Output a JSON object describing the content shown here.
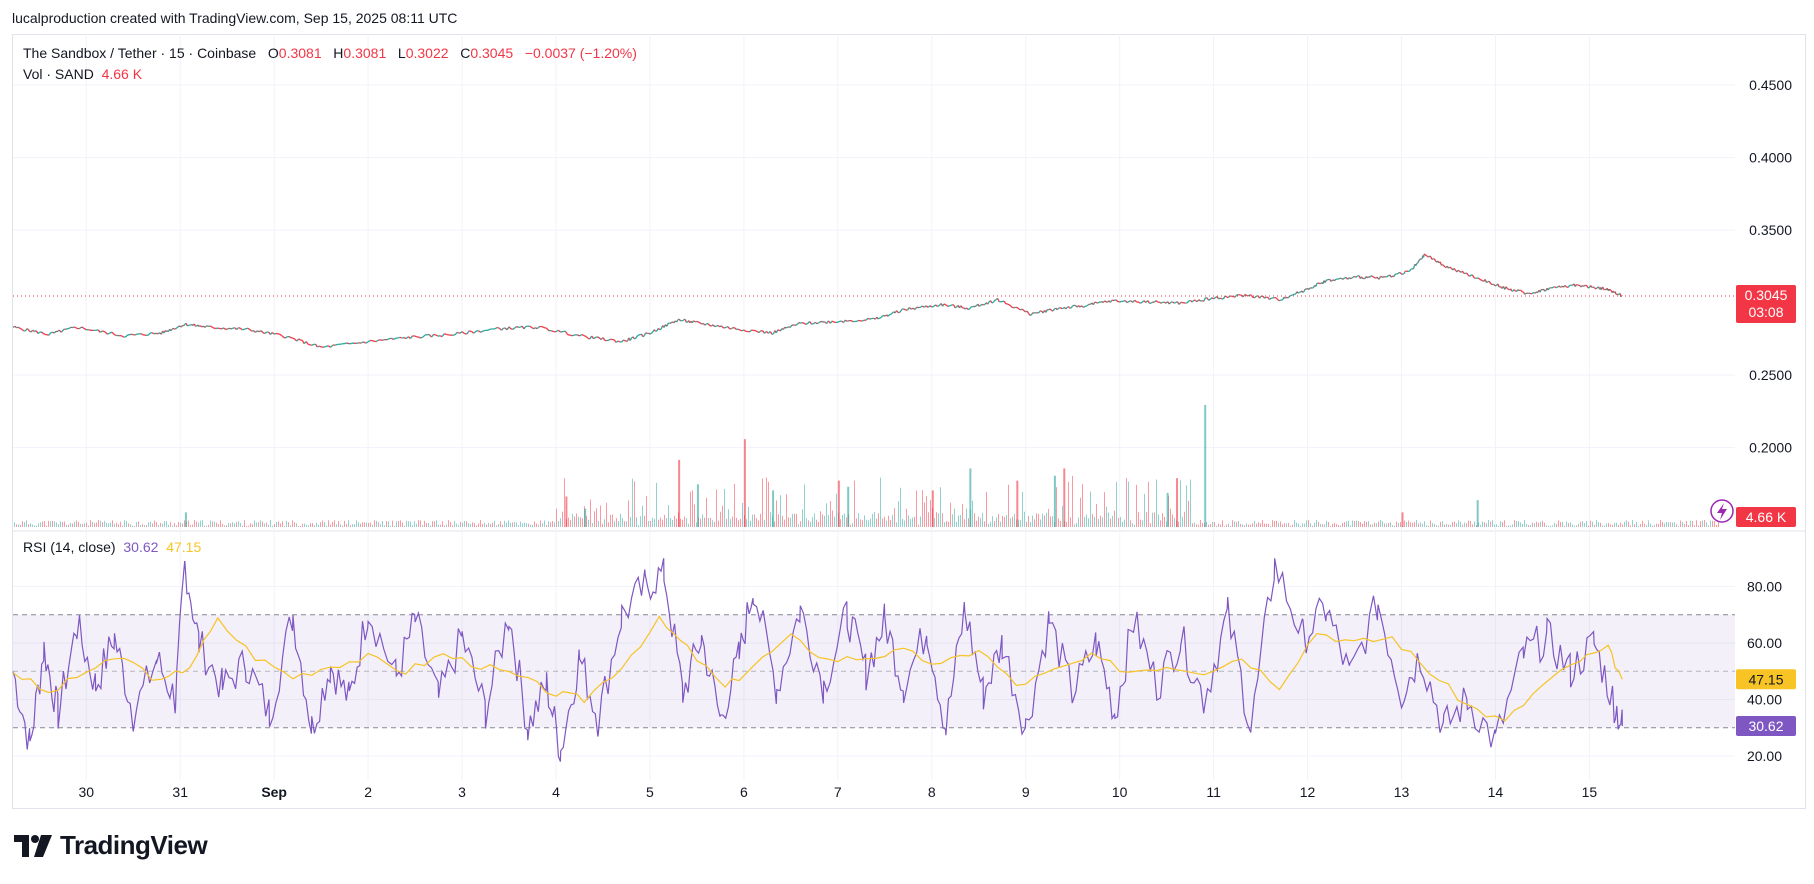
{
  "header": {
    "attribution": "lucalproduction created with TradingView.com, Sep 15, 2025 08:11 UTC"
  },
  "legend": {
    "symbol": "The Sandbox / Tether · 15 · Coinbase",
    "o_label": "O",
    "o_value": "0.3081",
    "h_label": "H",
    "h_value": "0.3081",
    "l_label": "L",
    "l_value": "0.3022",
    "c_label": "C",
    "c_value": "0.3045",
    "change": "−0.0037 (−1.20%)",
    "vol_label": "Vol · SAND",
    "vol_value": "4.66 K",
    "rsi_label": "RSI (14, close)",
    "rsi_value": "30.62",
    "rsi_ma_value": "47.15"
  },
  "badges": {
    "price": "0.3045",
    "countdown": "03:08",
    "volume": "4.66 K",
    "rsi_ma": "47.15",
    "rsi": "30.62"
  },
  "colors": {
    "up": "#26a69a",
    "down": "#f23645",
    "rsi_line": "#7e57c2",
    "rsi_ma": "#f7c325",
    "rsi_band": "#7e57c2",
    "grid": "#f0f3fa",
    "text": "#131722",
    "axis_text": "#131722",
    "alert_icon": "#9c27b0"
  },
  "footer": {
    "brand": "TradingView",
    "logo_icon": "tradingview-logo-icon"
  },
  "chart_data": [
    {
      "type": "line",
      "name": "price",
      "y_ticks": [
        "0.4500",
        "0.4000",
        "0.3500",
        "0.2500",
        "0.2000"
      ],
      "y_tick_values": [
        0.45,
        0.4,
        0.35,
        0.25,
        0.2
      ],
      "ylim": [
        0.1445,
        0.481
      ],
      "last_price": 0.3045,
      "x_tick_labels": [
        "30",
        "31",
        "Sep",
        "2",
        "3",
        "4",
        "5",
        "6",
        "7",
        "8",
        "9",
        "10",
        "11",
        "12",
        "13",
        "14",
        "15"
      ],
      "x_tick_days": [
        0,
        1,
        2,
        3,
        4,
        5,
        6,
        7,
        8,
        9,
        10,
        11,
        12,
        13,
        14,
        15,
        16
      ],
      "xlim_days": [
        -0.78,
        17.55
      ],
      "series": [
        {
          "values_x_days": [
            -0.78,
            -0.4,
            -0.1,
            0.4,
            0.8,
            1.05,
            1.3,
            1.7,
            2.1,
            2.5,
            3.0,
            3.45,
            3.9,
            4.4,
            4.8,
            5.3,
            5.7,
            6.0,
            6.3,
            6.55,
            6.9,
            7.3,
            7.6,
            8.0,
            8.4,
            8.7,
            9.1,
            9.4,
            9.7,
            10.05,
            10.35,
            10.6,
            10.9,
            11.3,
            11.65,
            12.0,
            12.35,
            12.7,
            12.95,
            13.2,
            13.55,
            13.8,
            14.1,
            14.25,
            14.5,
            14.8,
            15.1,
            15.35,
            15.6,
            15.85,
            16.1,
            16.2,
            16.35
          ],
          "values_y": [
            0.283,
            0.278,
            0.283,
            0.277,
            0.279,
            0.285,
            0.283,
            0.2815,
            0.277,
            0.269,
            0.273,
            0.276,
            0.278,
            0.282,
            0.283,
            0.2765,
            0.273,
            0.279,
            0.288,
            0.2855,
            0.282,
            0.279,
            0.2855,
            0.287,
            0.2885,
            0.295,
            0.2985,
            0.296,
            0.302,
            0.292,
            0.296,
            0.2975,
            0.301,
            0.3005,
            0.2995,
            0.303,
            0.305,
            0.302,
            0.308,
            0.315,
            0.3175,
            0.317,
            0.322,
            0.333,
            0.324,
            0.317,
            0.31,
            0.306,
            0.31,
            0.312,
            0.31,
            0.309,
            0.3045
          ]
        }
      ]
    },
    {
      "type": "bar",
      "name": "volume",
      "last_value": "4.66 K",
      "relative_spikes_x_days": [
        1.05,
        5.1,
        5.3,
        6.3,
        6.5,
        7.0,
        7.3,
        8.0,
        8.1,
        9.0,
        9.4,
        9.9,
        10.3,
        10.4,
        11.5,
        11.6,
        11.9,
        14.0,
        14.8
      ],
      "relative_spikes_h": [
        0.12,
        0.25,
        0.15,
        0.55,
        0.35,
        0.72,
        0.3,
        0.38,
        0.33,
        0.3,
        0.48,
        0.38,
        0.42,
        0.48,
        0.28,
        0.4,
        1.0,
        0.12,
        0.22
      ]
    },
    {
      "type": "line",
      "name": "RSI (14, close)",
      "y_ticks": [
        "80.00",
        "60.00",
        "40.00",
        "20.00"
      ],
      "y_tick_values": [
        80,
        60,
        40,
        20
      ],
      "ylim": [
        11.5,
        98.6
      ],
      "upper_band": 70,
      "middle_band": 50,
      "lower_band": 30,
      "last_rsi": 30.62,
      "last_rsi_ma": 47.15,
      "series": [
        {
          "name": "RSI",
          "x_days": [
            -0.78,
            -0.6,
            -0.45,
            -0.3,
            -0.1,
            0.1,
            0.3,
            0.5,
            0.75,
            0.95,
            1.05,
            1.2,
            1.45,
            1.7,
            1.95,
            2.2,
            2.4,
            2.6,
            2.8,
            3.0,
            3.3,
            3.5,
            3.75,
            4.0,
            4.25,
            4.5,
            4.7,
            4.9,
            5.05,
            5.25,
            5.45,
            5.7,
            5.95,
            6.15,
            6.35,
            6.55,
            6.75,
            6.95,
            7.1,
            7.35,
            7.6,
            7.85,
            8.1,
            8.3,
            8.5,
            8.7,
            8.95,
            9.15,
            9.35,
            9.55,
            9.75,
            10.0,
            10.25,
            10.5,
            10.75,
            10.95,
            11.15,
            11.4,
            11.65,
            11.9,
            12.15,
            12.4,
            12.65,
            12.95,
            13.2,
            13.45,
            13.75,
            14.0,
            14.2,
            14.45,
            14.7,
            15.0,
            15.3,
            15.55,
            15.8,
            16.05,
            16.25,
            16.35
          ],
          "y": [
            50,
            24,
            58,
            35,
            66,
            45,
            62,
            35,
            54,
            40,
            88,
            60,
            44,
            53,
            35,
            70,
            30,
            52,
            40,
            72,
            48,
            68,
            40,
            62,
            36,
            70,
            30,
            45,
            22,
            55,
            33,
            70,
            80,
            85,
            42,
            62,
            33,
            55,
            80,
            44,
            72,
            45,
            70,
            50,
            68,
            45,
            65,
            30,
            72,
            42,
            60,
            30,
            68,
            42,
            60,
            35,
            68,
            45,
            62,
            40,
            70,
            30,
            88,
            62,
            72,
            48,
            74,
            42,
            56,
            30,
            40,
            25,
            56,
            62,
            50,
            60,
            40,
            30.62
          ]
        },
        {
          "name": "RSI-based MA",
          "x_days": [
            -0.78,
            -0.4,
            0.0,
            0.4,
            0.8,
            1.1,
            1.4,
            1.8,
            2.2,
            2.6,
            3.0,
            3.4,
            3.8,
            4.2,
            4.6,
            5.0,
            5.3,
            5.7,
            6.1,
            6.4,
            6.8,
            7.1,
            7.5,
            7.9,
            8.3,
            8.7,
            9.1,
            9.5,
            9.9,
            10.3,
            10.7,
            11.1,
            11.5,
            11.9,
            12.3,
            12.7,
            13.1,
            13.5,
            13.9,
            14.3,
            14.7,
            15.1,
            15.5,
            15.9,
            16.2,
            16.35
          ],
          "y": [
            50,
            42,
            50,
            55,
            46,
            52,
            68,
            55,
            48,
            52,
            55,
            50,
            56,
            52,
            48,
            42,
            40,
            52,
            68,
            58,
            44,
            52,
            62,
            54,
            55,
            57,
            52,
            58,
            45,
            50,
            55,
            50,
            52,
            50,
            55,
            45,
            64,
            60,
            62,
            50,
            38,
            32,
            45,
            54,
            58,
            47.15
          ]
        }
      ]
    }
  ]
}
